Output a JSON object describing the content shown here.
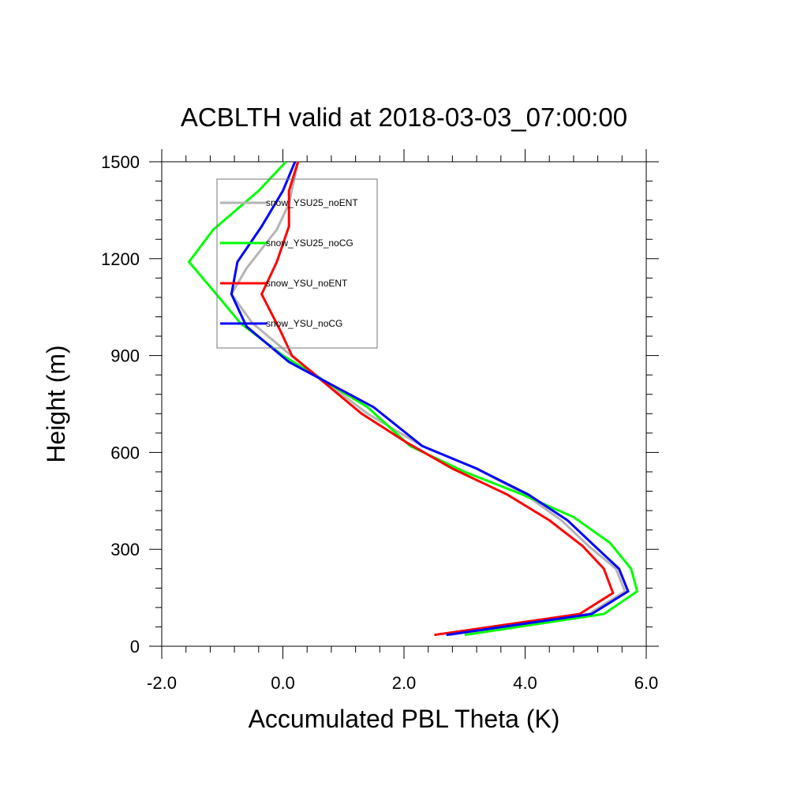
{
  "chart_data": {
    "type": "line",
    "title": "ACBLTH valid at 2018-03-03_07:00:00",
    "xlabel": "Accumulated PBL Theta (K)",
    "ylabel": "Height (m)",
    "xlim": [
      -2.0,
      6.0
    ],
    "ylim": [
      0,
      1500
    ],
    "x_ticks": [
      -2.0,
      0.0,
      2.0,
      4.0,
      6.0
    ],
    "x_tick_labels": [
      "-2.0",
      "0.0",
      "2.0",
      "4.0",
      "6.0"
    ],
    "y_ticks": [
      0,
      300,
      600,
      900,
      1200,
      1500
    ],
    "y_tick_labels": [
      "0",
      "300",
      "600",
      "900",
      "1200",
      "1500"
    ],
    "legend_position": "top-left",
    "series": [
      {
        "name": "snow_YSU25_noENT",
        "color": "#b4b4b4",
        "points": [
          [
            2.75,
            35
          ],
          [
            5.05,
            100
          ],
          [
            5.65,
            170
          ],
          [
            5.5,
            240
          ],
          [
            5.05,
            310
          ],
          [
            4.6,
            390
          ],
          [
            4.0,
            470
          ],
          [
            3.2,
            550
          ],
          [
            2.3,
            620
          ],
          [
            1.4,
            720
          ],
          [
            0.2,
            890
          ],
          [
            -0.5,
            1000
          ],
          [
            -0.85,
            1090
          ],
          [
            -0.6,
            1170
          ],
          [
            -0.35,
            1230
          ],
          [
            -0.1,
            1290
          ],
          [
            0.1,
            1370
          ],
          [
            0.25,
            1500
          ]
        ]
      },
      {
        "name": "snow_YSU25_noCG",
        "color": "#00ff00",
        "points": [
          [
            3.0,
            35
          ],
          [
            5.3,
            100
          ],
          [
            5.85,
            170
          ],
          [
            5.75,
            240
          ],
          [
            5.4,
            320
          ],
          [
            4.8,
            400
          ],
          [
            3.95,
            470
          ],
          [
            3.0,
            540
          ],
          [
            2.1,
            620
          ],
          [
            1.4,
            740
          ],
          [
            0.0,
            900
          ],
          [
            -0.7,
            1000
          ],
          [
            -1.1,
            1090
          ],
          [
            -1.55,
            1190
          ],
          [
            -1.15,
            1290
          ],
          [
            -0.4,
            1410
          ],
          [
            0.05,
            1500
          ]
        ]
      },
      {
        "name": "snow_YSU_noENT",
        "color": "#ff0000",
        "points": [
          [
            2.5,
            35
          ],
          [
            4.9,
            100
          ],
          [
            5.45,
            165
          ],
          [
            5.3,
            240
          ],
          [
            4.95,
            310
          ],
          [
            4.4,
            390
          ],
          [
            3.7,
            470
          ],
          [
            2.8,
            550
          ],
          [
            2.05,
            630
          ],
          [
            1.3,
            720
          ],
          [
            0.15,
            900
          ],
          [
            -0.05,
            980
          ],
          [
            -0.35,
            1090
          ],
          [
            -0.1,
            1190
          ],
          [
            0.1,
            1300
          ],
          [
            0.1,
            1410
          ],
          [
            0.25,
            1500
          ]
        ]
      },
      {
        "name": "snow_YSU_noCG",
        "color": "#0000ff",
        "points": [
          [
            2.7,
            35
          ],
          [
            5.1,
            100
          ],
          [
            5.7,
            170
          ],
          [
            5.55,
            240
          ],
          [
            5.15,
            310
          ],
          [
            4.7,
            390
          ],
          [
            4.05,
            470
          ],
          [
            3.2,
            550
          ],
          [
            2.3,
            620
          ],
          [
            1.5,
            740
          ],
          [
            0.1,
            880
          ],
          [
            -0.6,
            990
          ],
          [
            -0.85,
            1090
          ],
          [
            -0.75,
            1190
          ],
          [
            -0.35,
            1300
          ],
          [
            0.0,
            1410
          ],
          [
            0.2,
            1500
          ]
        ]
      }
    ]
  }
}
